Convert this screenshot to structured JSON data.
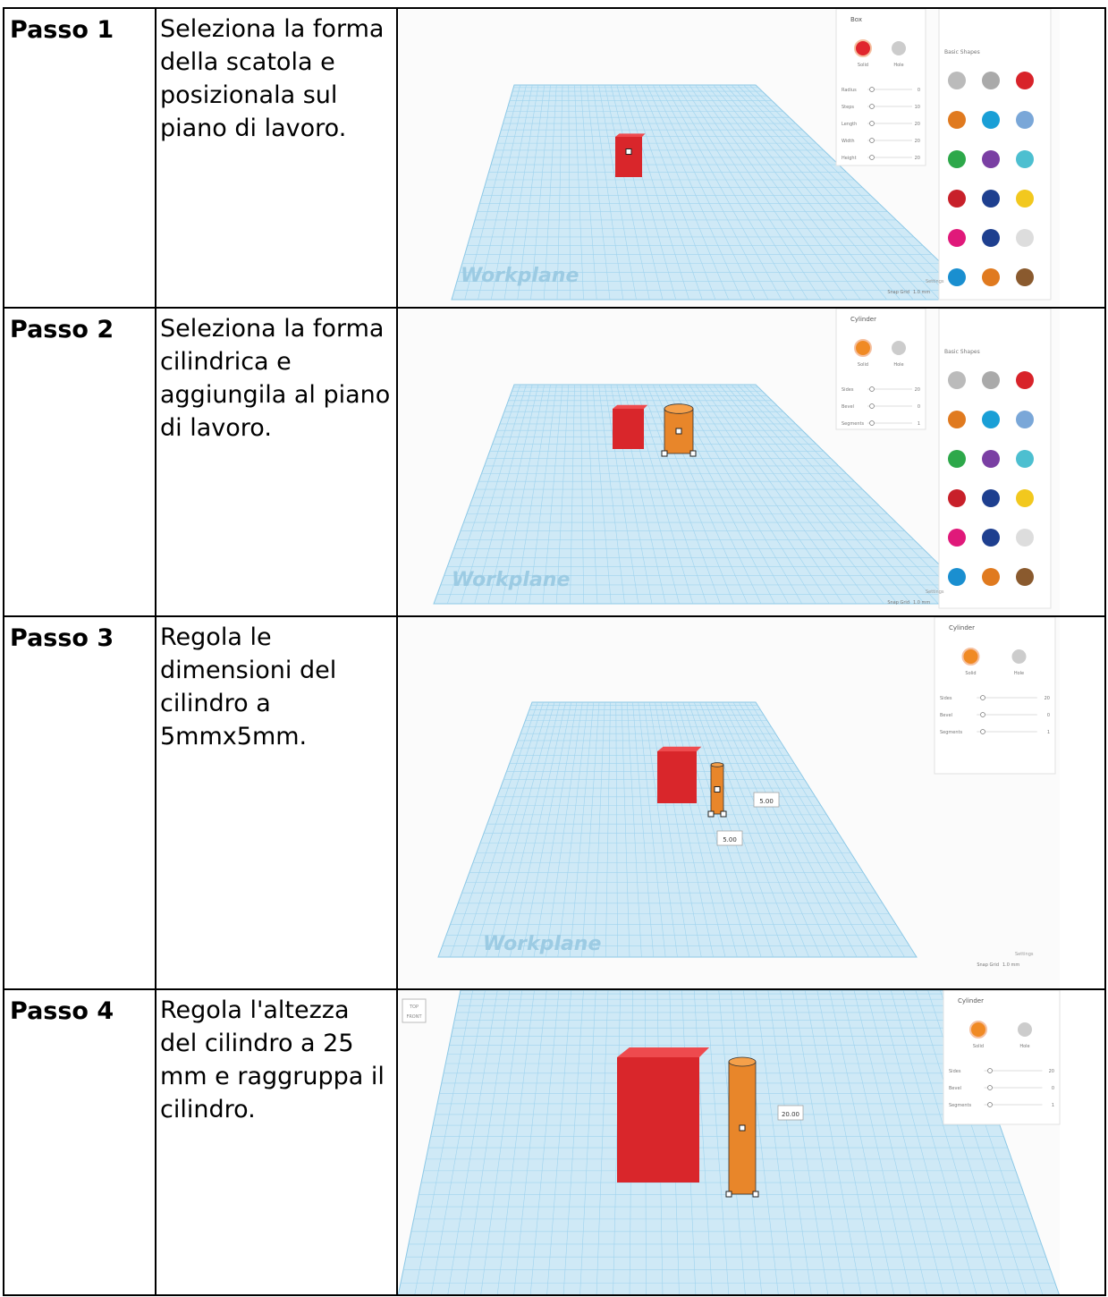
{
  "steps": [
    {
      "label": "Passo 1",
      "text": "Seleziona la forma della scatola e posizionala sul piano di lavoro.",
      "screenshot": {
        "workplane": "Workplane",
        "panel_title": "Box",
        "solid": "Solid",
        "hole": "Hole",
        "params": [
          {
            "name": "Radius",
            "value": "0"
          },
          {
            "name": "Steps",
            "value": "10"
          },
          {
            "name": "Length",
            "value": "20"
          },
          {
            "name": "Width",
            "value": "20"
          },
          {
            "name": "Height",
            "value": "20"
          }
        ],
        "library": "Basic Shapes",
        "settings": "Settings",
        "snap_grid": "Snap Grid",
        "snap_value": "1.0 mm"
      }
    },
    {
      "label": "Passo 2",
      "text": "Seleziona la forma cilindrica e aggiungila al piano di lavoro.",
      "screenshot": {
        "workplane": "Workplane",
        "panel_title": "Cylinder",
        "solid": "Solid",
        "hole": "Hole",
        "params": [
          {
            "name": "Sides",
            "value": "20"
          },
          {
            "name": "Bevel",
            "value": "0"
          },
          {
            "name": "Segments",
            "value": "1"
          }
        ],
        "library": "Basic Shapes",
        "settings": "Settings",
        "snap_grid": "Snap Grid",
        "snap_value": "1.0 mm"
      }
    },
    {
      "label": "Passo 3",
      "text": "Regola le dimensioni del cilindro a 5mmx5mm.",
      "screenshot": {
        "workplane": "Workplane",
        "panel_title": "Cylinder",
        "solid": "Solid",
        "hole": "Hole",
        "params": [
          {
            "name": "Sides",
            "value": "20"
          },
          {
            "name": "Bevel",
            "value": "0"
          },
          {
            "name": "Segments",
            "value": "1"
          }
        ],
        "dimensions": [
          "5.00",
          "5.00"
        ],
        "settings": "Settings",
        "snap_grid": "Snap Grid",
        "snap_value": "1.0 mm"
      }
    },
    {
      "label": "Passo 4",
      "text": "Regola l'altezza del cilindro a 25 mm e raggruppa il cilindro.",
      "screenshot": {
        "panel_title": "Cylinder",
        "solid": "Solid",
        "hole": "Hole",
        "params": [
          {
            "name": "Sides",
            "value": "20"
          },
          {
            "name": "Bevel",
            "value": "0"
          },
          {
            "name": "Segments",
            "value": "1"
          }
        ],
        "dimensions": [
          "20.00"
        ],
        "view_top": "TOP",
        "view_front": "FRONT"
      }
    }
  ]
}
